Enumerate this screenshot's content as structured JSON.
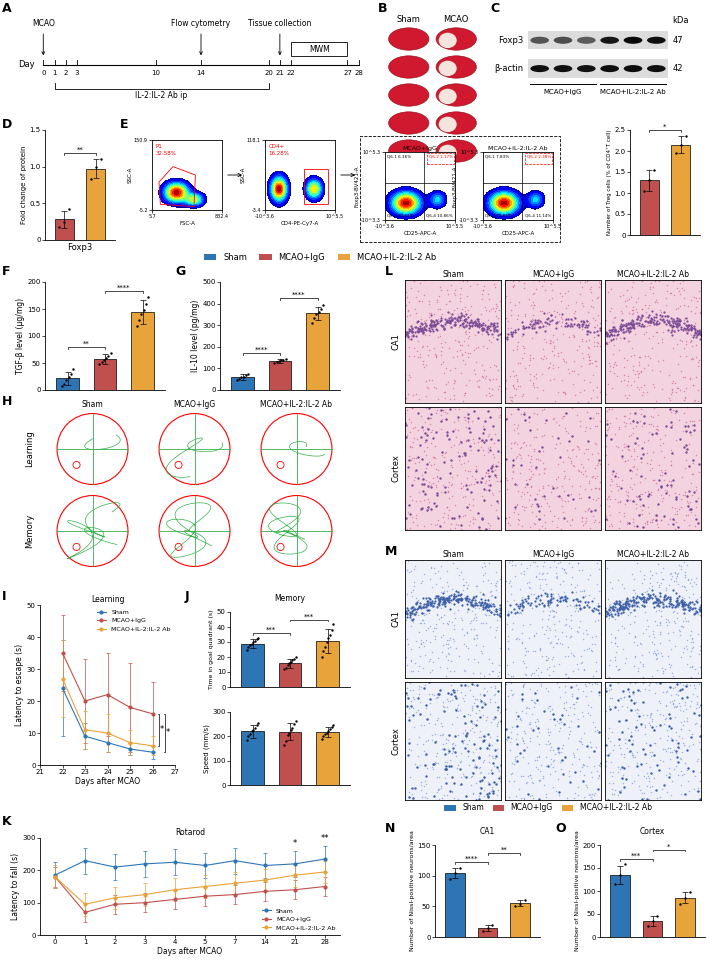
{
  "groups": [
    {
      "name": "Sham",
      "color": "#2e75b6"
    },
    {
      "name": "MCAO+IgG",
      "color": "#c0504d"
    },
    {
      "name": "MCAO+IL-2:IL-2 Ab",
      "color": "#e8a33a"
    }
  ],
  "timeline": {
    "panel": "A",
    "axis_label": "Day",
    "ticks": [
      0,
      1,
      2,
      3,
      10,
      14,
      20,
      21,
      22,
      27,
      28
    ],
    "events": [
      {
        "day": 0,
        "text": "MCAO"
      },
      {
        "day": 14,
        "text": "Flow cytometry"
      },
      {
        "day": 21,
        "text": "Tissue collection"
      }
    ],
    "treatment": {
      "start": 1,
      "end": 20,
      "text": "IL-2:IL-2 Ab ip"
    },
    "test": {
      "start": 22,
      "end": 27,
      "text": "MWM"
    }
  },
  "ttc": {
    "panel": "B",
    "columns": [
      "Sham",
      "MCAO"
    ]
  },
  "blot": {
    "panel": "C",
    "unit": "kDa",
    "rows": [
      {
        "name": "Foxp3",
        "kda": 47
      },
      {
        "name": "β-actin",
        "kda": 42
      }
    ],
    "groups": [
      "MCAO+IgG",
      "MCAO+IL-2:IL-2 Ab"
    ]
  },
  "flow": {
    "panel": "E",
    "gates": [
      {
        "xlabel": "FSC-A",
        "ylabel": "SSC-A",
        "xticks": [
          {
            "value": 0,
            "label": "5.7"
          },
          {
            "value": 1,
            "label": "832.4"
          }
        ],
        "yticks": [
          {
            "value": 0,
            "label": "-5.2"
          },
          {
            "value": 1,
            "label": "150.9"
          }
        ],
        "gate": "P1",
        "percent": "32.58%"
      },
      {
        "xlabel": "CD4-PE-Cy7-A",
        "ylabel": "SSC-A",
        "xticks": [
          {
            "value": 0,
            "label": "-10^3.6"
          },
          {
            "value": 1,
            "label": "10^5.5"
          }
        ],
        "yticks": [
          {
            "value": 0,
            "label": "-3.4"
          },
          {
            "value": 1,
            "label": "118.1"
          }
        ],
        "gate": "CD4+",
        "percent": "16.28%"
      }
    ],
    "quadrant_plots": [
      {
        "title": "MCAO+IgG",
        "xlabel": "CD25-APC-A",
        "ylabel": "Foxp3-BV421-A",
        "xticks": [
          {
            "value": 0,
            "label": "-10^3.6"
          },
          {
            "value": 1,
            "label": "10^5.5"
          }
        ],
        "yticks": [
          {
            "value": 0,
            "label": "-10^3.3"
          },
          {
            "value": 1,
            "label": "10^5.3"
          }
        ],
        "quadrants": [
          {
            "name": "Q6-1",
            "label": "6.36%"
          },
          {
            "name": "Q6-2",
            "label": "1.17%"
          },
          {
            "name": "Q6-3",
            "label": "81.61%"
          },
          {
            "name": "Q6-4",
            "label": "10.86%"
          }
        ]
      },
      {
        "title": "MCAO+IL-2:IL-2 Ab",
        "xlabel": "CD25-APC-A",
        "ylabel": "Foxp3-BV421-A",
        "xticks": [
          {
            "value": 0,
            "label": "-10^3.6"
          },
          {
            "value": 1,
            "label": "10^5.5"
          }
        ],
        "yticks": [
          {
            "value": 0,
            "label": "-10^3.3"
          },
          {
            "value": 1,
            "label": "10^5.3"
          }
        ],
        "quadrants": [
          {
            "name": "Q6-1",
            "label": "7.83%"
          },
          {
            "name": "Q6-2",
            "label": "2.38%"
          },
          {
            "name": "Q6-3",
            "label": "78.65%"
          },
          {
            "name": "Q6-4",
            "label": "11.14%"
          }
        ]
      }
    ]
  },
  "trajectories": {
    "panel": "H",
    "rows": [
      "Learning",
      "Memory"
    ]
  },
  "histology": [
    {
      "panel": "L",
      "rows": [
        "CA1",
        "Cortex"
      ]
    },
    {
      "panel": "M",
      "rows": [
        "CA1",
        "Cortex"
      ]
    }
  ],
  "chart_data": [
    {
      "panel": "D",
      "type": "bar",
      "categories": [
        null,
        null
      ],
      "values": [
        0.28,
        0.97
      ],
      "errors": [
        0.12,
        0.13
      ],
      "points": [
        [
          0.18,
          0.25,
          0.42
        ],
        [
          0.83,
          1.0,
          1.1
        ]
      ],
      "colors": [
        "#c0504d",
        "#e8a33a"
      ],
      "xlabel": "Foxp3",
      "ylabel": "Fold change of protein",
      "ylim": [
        0,
        1.5
      ],
      "yticks": [
        0,
        0.5,
        1.0,
        1.5
      ],
      "tick_labels": "y",
      "annotations": [
        {
          "from": 0,
          "to": 1,
          "text": "**"
        }
      ]
    },
    {
      "type": "bar",
      "categories": [
        null,
        null
      ],
      "values": [
        1.3,
        2.15
      ],
      "errors": [
        0.25,
        0.2
      ],
      "points": [
        [
          1.05,
          1.3,
          1.55
        ],
        [
          1.95,
          2.15,
          2.35
        ]
      ],
      "colors": [
        "#c0504d",
        "#e8a33a"
      ],
      "ylabel": "Number of Treg cells (% of CD4⁺T cell)",
      "ylim": [
        0,
        2.5
      ],
      "yticks": [
        0,
        0.5,
        1.0,
        1.5,
        2.0,
        2.5
      ],
      "tick_labels": "y",
      "annotations": [
        {
          "from": 0,
          "to": 1,
          "text": "*"
        }
      ]
    },
    {
      "panel": "F",
      "type": "bar",
      "categories": [
        null,
        null,
        null
      ],
      "values": [
        22,
        58,
        145
      ],
      "errors": [
        12,
        9,
        22
      ],
      "points": [
        [
          8,
          12,
          18,
          25,
          30,
          38
        ],
        [
          48,
          52,
          56,
          60,
          63,
          68
        ],
        [
          118,
          130,
          140,
          148,
          160,
          172
        ]
      ],
      "colors": [
        "#2e75b6",
        "#c0504d",
        "#e8a33a"
      ],
      "ylabel": "TGF-β level (μg/mg)",
      "ylim": [
        0,
        200
      ],
      "yticks": [
        0,
        50,
        100,
        150,
        200
      ],
      "tick_labels": "y",
      "annotations": [
        {
          "from": 0,
          "to": 1,
          "text": "**"
        },
        {
          "from": 1,
          "to": 2,
          "text": "****"
        }
      ]
    },
    {
      "panel": "G",
      "type": "bar",
      "categories": [
        null,
        null,
        null
      ],
      "values": [
        60,
        135,
        355
      ],
      "errors": [
        12,
        8,
        30
      ],
      "points": [
        [
          45,
          52,
          58,
          62,
          68,
          75
        ],
        [
          125,
          130,
          134,
          137,
          140,
          143
        ],
        [
          310,
          335,
          350,
          362,
          375,
          395
        ]
      ],
      "colors": [
        "#2e75b6",
        "#c0504d",
        "#e8a33a"
      ],
      "ylabel": "IL-10 level (pg/mg)",
      "ylim": [
        0,
        500
      ],
      "yticks": [
        0,
        100,
        200,
        300,
        400,
        500
      ],
      "tick_labels": "y",
      "annotations": [
        {
          "from": 0,
          "to": 1,
          "text": "****"
        },
        {
          "from": 1,
          "to": 2,
          "text": "****"
        }
      ]
    },
    {
      "panel": "I",
      "type": "line",
      "title": "Learning",
      "x": [
        22,
        23,
        24,
        25,
        26
      ],
      "xlim": [
        21,
        27
      ],
      "xticks": [
        21,
        22,
        23,
        24,
        25,
        26,
        27
      ],
      "ylim": [
        0,
        50
      ],
      "yticks": [
        0,
        10,
        20,
        30,
        40,
        50
      ],
      "xlabel": "Days after MCAO",
      "ylabel": "Latency to escape (s)",
      "legend": "upper right",
      "marker": "o",
      "series": [
        {
          "name": "Sham",
          "color": "#2e75b6",
          "values": [
            24,
            9,
            7,
            5,
            4
          ],
          "errors": [
            15,
            4,
            3,
            2,
            2
          ]
        },
        {
          "name": "MCAO+IgG",
          "color": "#c0504d",
          "values": [
            35,
            20,
            22,
            18,
            16
          ],
          "errors": [
            12,
            13,
            13,
            14,
            10
          ]
        },
        {
          "name": "MCAO+IL-2:IL-2 Ab",
          "color": "#e8a33a",
          "values": [
            27,
            11,
            10,
            7,
            6
          ],
          "errors": [
            12,
            6,
            6,
            4,
            3
          ]
        }
      ],
      "annotations": [
        {
          "series": [
            1,
            2
          ],
          "text": "*"
        },
        {
          "series": [
            0,
            1
          ],
          "text": "*"
        }
      ]
    },
    {
      "panel": "J",
      "type": "bar",
      "title": "Memory",
      "categories": [
        null,
        null,
        null
      ],
      "values": [
        29,
        16,
        31
      ],
      "errors": [
        3,
        3,
        8
      ],
      "points": [
        [
          25,
          27,
          28,
          29,
          30,
          31,
          32,
          33
        ],
        [
          12,
          13,
          15,
          16,
          17,
          18,
          19,
          20
        ],
        [
          20,
          24,
          27,
          30,
          33,
          35,
          38,
          42
        ]
      ],
      "colors": [
        "#2e75b6",
        "#c0504d",
        "#e8a33a"
      ],
      "ylabel": "Time in goal quadrant (s)",
      "ylim": [
        0,
        50
      ],
      "yticks": [
        0,
        10,
        20,
        30,
        40,
        50
      ],
      "tick_labels": "y",
      "annotations": [
        {
          "from": 0,
          "to": 1,
          "text": "***"
        },
        {
          "from": 1,
          "to": 2,
          "text": "***"
        }
      ]
    },
    {
      "type": "bar",
      "categories": [
        null,
        null,
        null
      ],
      "values": [
        220,
        218,
        218
      ],
      "errors": [
        25,
        35,
        20
      ],
      "points": [
        [
          185,
          200,
          210,
          220,
          225,
          235,
          245,
          255
        ],
        [
          165,
          180,
          205,
          215,
          225,
          235,
          250,
          265
        ],
        [
          190,
          200,
          210,
          215,
          222,
          230,
          238,
          245
        ]
      ],
      "colors": [
        "#2e75b6",
        "#c0504d",
        "#e8a33a"
      ],
      "ylabel": "Speed (mm/s)",
      "ylim": [
        0,
        300
      ],
      "yticks": [
        0,
        100,
        200,
        300
      ],
      "tick_labels": "y"
    },
    {
      "panel": "K",
      "type": "line",
      "title": "Rotarod",
      "categories": [
        "0",
        "1",
        "2",
        "3",
        "4",
        "5",
        "7",
        "14",
        "21",
        "28"
      ],
      "ylim": [
        0,
        300
      ],
      "yticks": [
        0,
        100,
        200,
        300
      ],
      "xlabel": "Days after MCAO",
      "ylabel": "Latency to fall (s)",
      "legend": "lower right",
      "marker": "o",
      "series": [
        {
          "name": "Sham",
          "color": "#2e75b6",
          "values": [
            185,
            230,
            210,
            220,
            225,
            215,
            230,
            215,
            220,
            235
          ],
          "errors": [
            40,
            40,
            40,
            40,
            40,
            40,
            40,
            40,
            40,
            40
          ]
        },
        {
          "name": "MCAO+IgG",
          "color": "#c0504d",
          "values": [
            180,
            70,
            95,
            100,
            110,
            120,
            125,
            135,
            140,
            150
          ],
          "errors": [
            30,
            30,
            30,
            30,
            30,
            30,
            30,
            30,
            30,
            30
          ]
        },
        {
          "name": "MCAO+IL-2:IL-2 Ab",
          "color": "#e8a33a",
          "values": [
            180,
            95,
            115,
            125,
            140,
            150,
            160,
            170,
            185,
            195
          ],
          "errors": [
            35,
            35,
            35,
            35,
            35,
            35,
            35,
            35,
            35,
            35
          ]
        }
      ],
      "annotations": [
        {
          "category": "21",
          "text": "*"
        },
        {
          "category": "28",
          "text": "**"
        }
      ]
    },
    {
      "panel": "N",
      "type": "bar",
      "title": "CA1",
      "categories": [
        null,
        null,
        null
      ],
      "values": [
        105,
        15,
        55
      ],
      "errors": [
        8,
        5,
        5
      ],
      "points": [
        [
          95,
          105,
          113
        ],
        [
          10,
          14,
          20
        ],
        [
          50,
          53,
          60
        ]
      ],
      "colors": [
        "#2e75b6",
        "#c0504d",
        "#e8a33a"
      ],
      "ylabel": "Number of Nissl-positive neurons/area",
      "ylim": [
        0,
        150
      ],
      "yticks": [
        0,
        50,
        100,
        150
      ],
      "tick_labels": "y",
      "annotations": [
        {
          "from": 0,
          "to": 1,
          "text": "****"
        },
        {
          "from": 1,
          "to": 2,
          "text": "**"
        }
      ]
    },
    {
      "panel": "O",
      "type": "bar",
      "title": "Cortex",
      "categories": [
        null,
        null,
        null
      ],
      "values": [
        135,
        35,
        85
      ],
      "errors": [
        20,
        10,
        12
      ],
      "points": [
        [
          115,
          135,
          158
        ],
        [
          25,
          35,
          45
        ],
        [
          72,
          85,
          98
        ]
      ],
      "colors": [
        "#2e75b6",
        "#c0504d",
        "#e8a33a"
      ],
      "ylabel": "Number of Nissl-positive neurons/area",
      "ylim": [
        0,
        200
      ],
      "yticks": [
        0,
        50,
        100,
        150,
        200
      ],
      "tick_labels": "y",
      "annotations": [
        {
          "from": 0,
          "to": 1,
          "text": "***"
        },
        {
          "from": 1,
          "to": 2,
          "text": "*"
        }
      ]
    }
  ]
}
